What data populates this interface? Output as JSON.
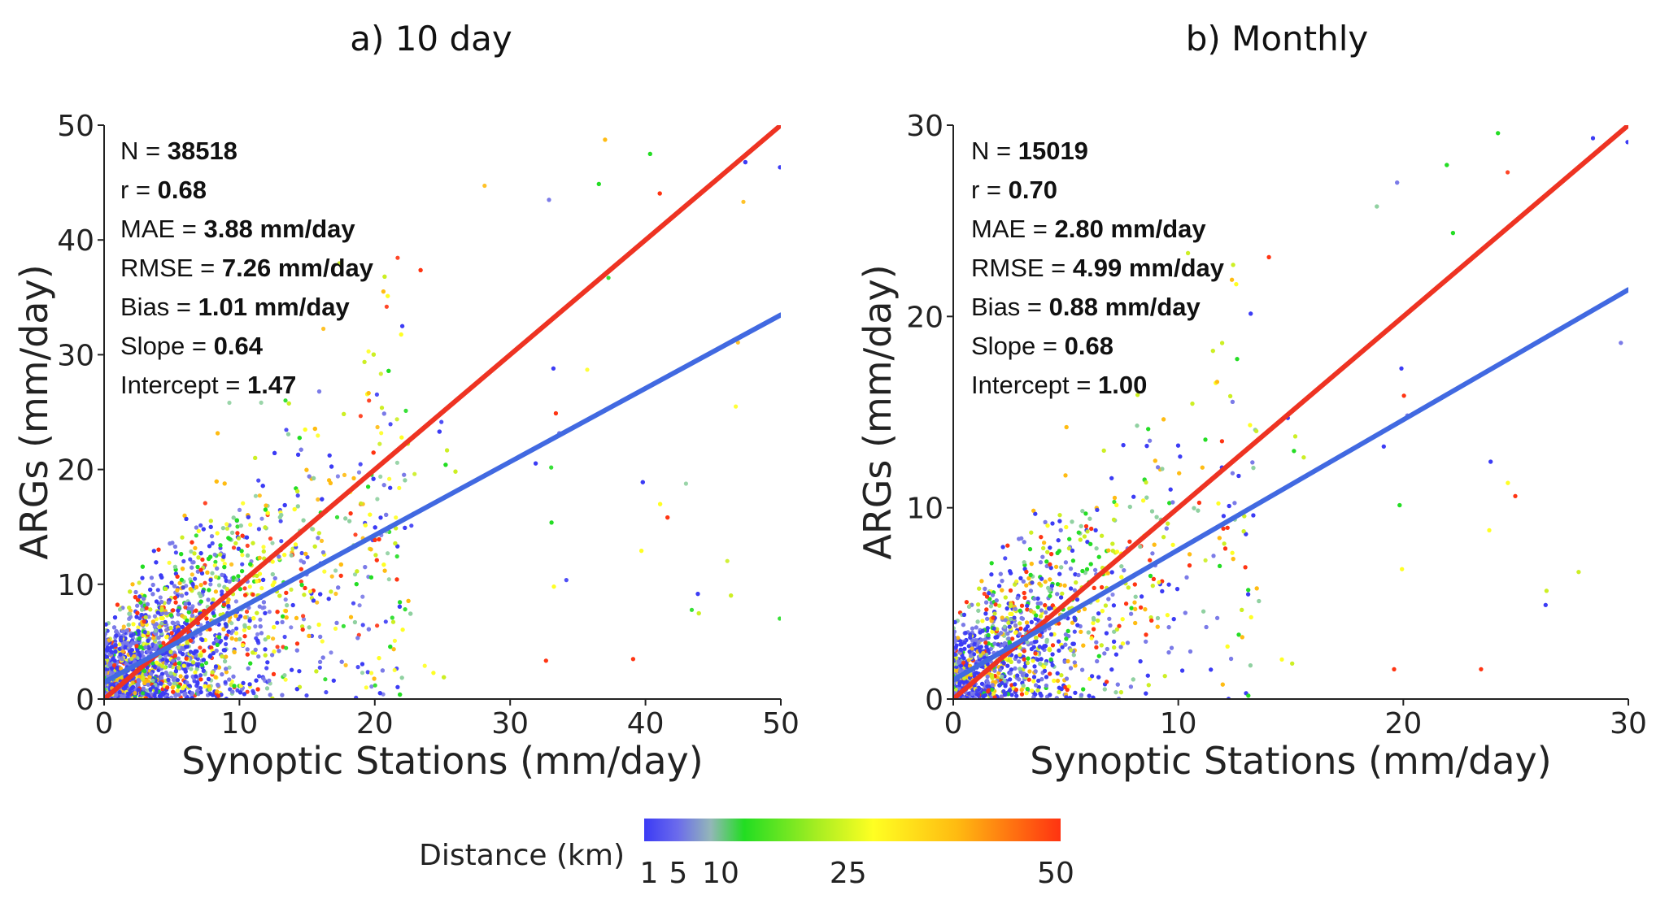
{
  "chart_data": [
    {
      "type": "scatter",
      "title": "a) 10 day",
      "xlabel": "Synoptic Stations (mm/day)",
      "ylabel": "ARGs (mm/day)",
      "xlim": [
        0,
        50
      ],
      "ylim": [
        0,
        50
      ],
      "xticks": [
        "0",
        "10",
        "20",
        "30",
        "40",
        "50"
      ],
      "yticks": [
        "0",
        "10",
        "20",
        "30",
        "40",
        "50"
      ],
      "stats": [
        {
          "label": "N = ",
          "value": "38518"
        },
        {
          "label": "r = ",
          "value": "0.68"
        },
        {
          "label": "MAE = ",
          "value": "3.88 mm/day"
        },
        {
          "label": "RMSE = ",
          "value": "7.26 mm/day"
        },
        {
          "label": "Bias = ",
          "value": "1.01 mm/day"
        },
        {
          "label": "Slope = ",
          "value": "0.64"
        },
        {
          "label": "Intercept = ",
          "value": "1.47"
        }
      ],
      "lines": [
        {
          "name": "1:1 line",
          "color": "#ee3322",
          "slope": 1,
          "intercept": 0
        },
        {
          "name": "regression fit",
          "color": "#4169e1",
          "slope": 0.64,
          "intercept": 1.47
        }
      ],
      "points_note": "dense cloud concentrated near origin, colored by distance"
    },
    {
      "type": "scatter",
      "title": "b) Monthly",
      "xlabel": "Synoptic Stations (mm/day)",
      "ylabel": "ARGs (mm/day)",
      "xlim": [
        0,
        30
      ],
      "ylim": [
        0,
        30
      ],
      "xticks": [
        "0",
        "10",
        "20",
        "30"
      ],
      "yticks": [
        "0",
        "10",
        "20",
        "30"
      ],
      "stats": [
        {
          "label": "N = ",
          "value": "15019"
        },
        {
          "label": "r = ",
          "value": "0.70"
        },
        {
          "label": "MAE = ",
          "value": "2.80 mm/day"
        },
        {
          "label": "RMSE = ",
          "value": "4.99 mm/day"
        },
        {
          "label": "Bias = ",
          "value": "0.88 mm/day"
        },
        {
          "label": "Slope = ",
          "value": "0.68"
        },
        {
          "label": "Intercept = ",
          "value": "1.00"
        }
      ],
      "lines": [
        {
          "name": "1:1 line",
          "color": "#ee3322",
          "slope": 1,
          "intercept": 0
        },
        {
          "name": "regression fit",
          "color": "#4169e1",
          "slope": 0.68,
          "intercept": 1.0
        }
      ],
      "points_note": "dense cloud concentrated near origin, colored by distance"
    }
  ],
  "colorbar": {
    "label": "Distance (km)",
    "ticks": [
      "1",
      "5",
      "10",
      "25",
      "50"
    ],
    "tick_values": [
      1,
      5,
      10,
      25,
      50
    ],
    "range": [
      1,
      50
    ],
    "colors": [
      "#3b3bf5",
      "#7a7ae8",
      "#8fd0a0",
      "#22dd22",
      "#ccee22",
      "#ffff22",
      "#ffbb11",
      "#ff3311"
    ]
  }
}
